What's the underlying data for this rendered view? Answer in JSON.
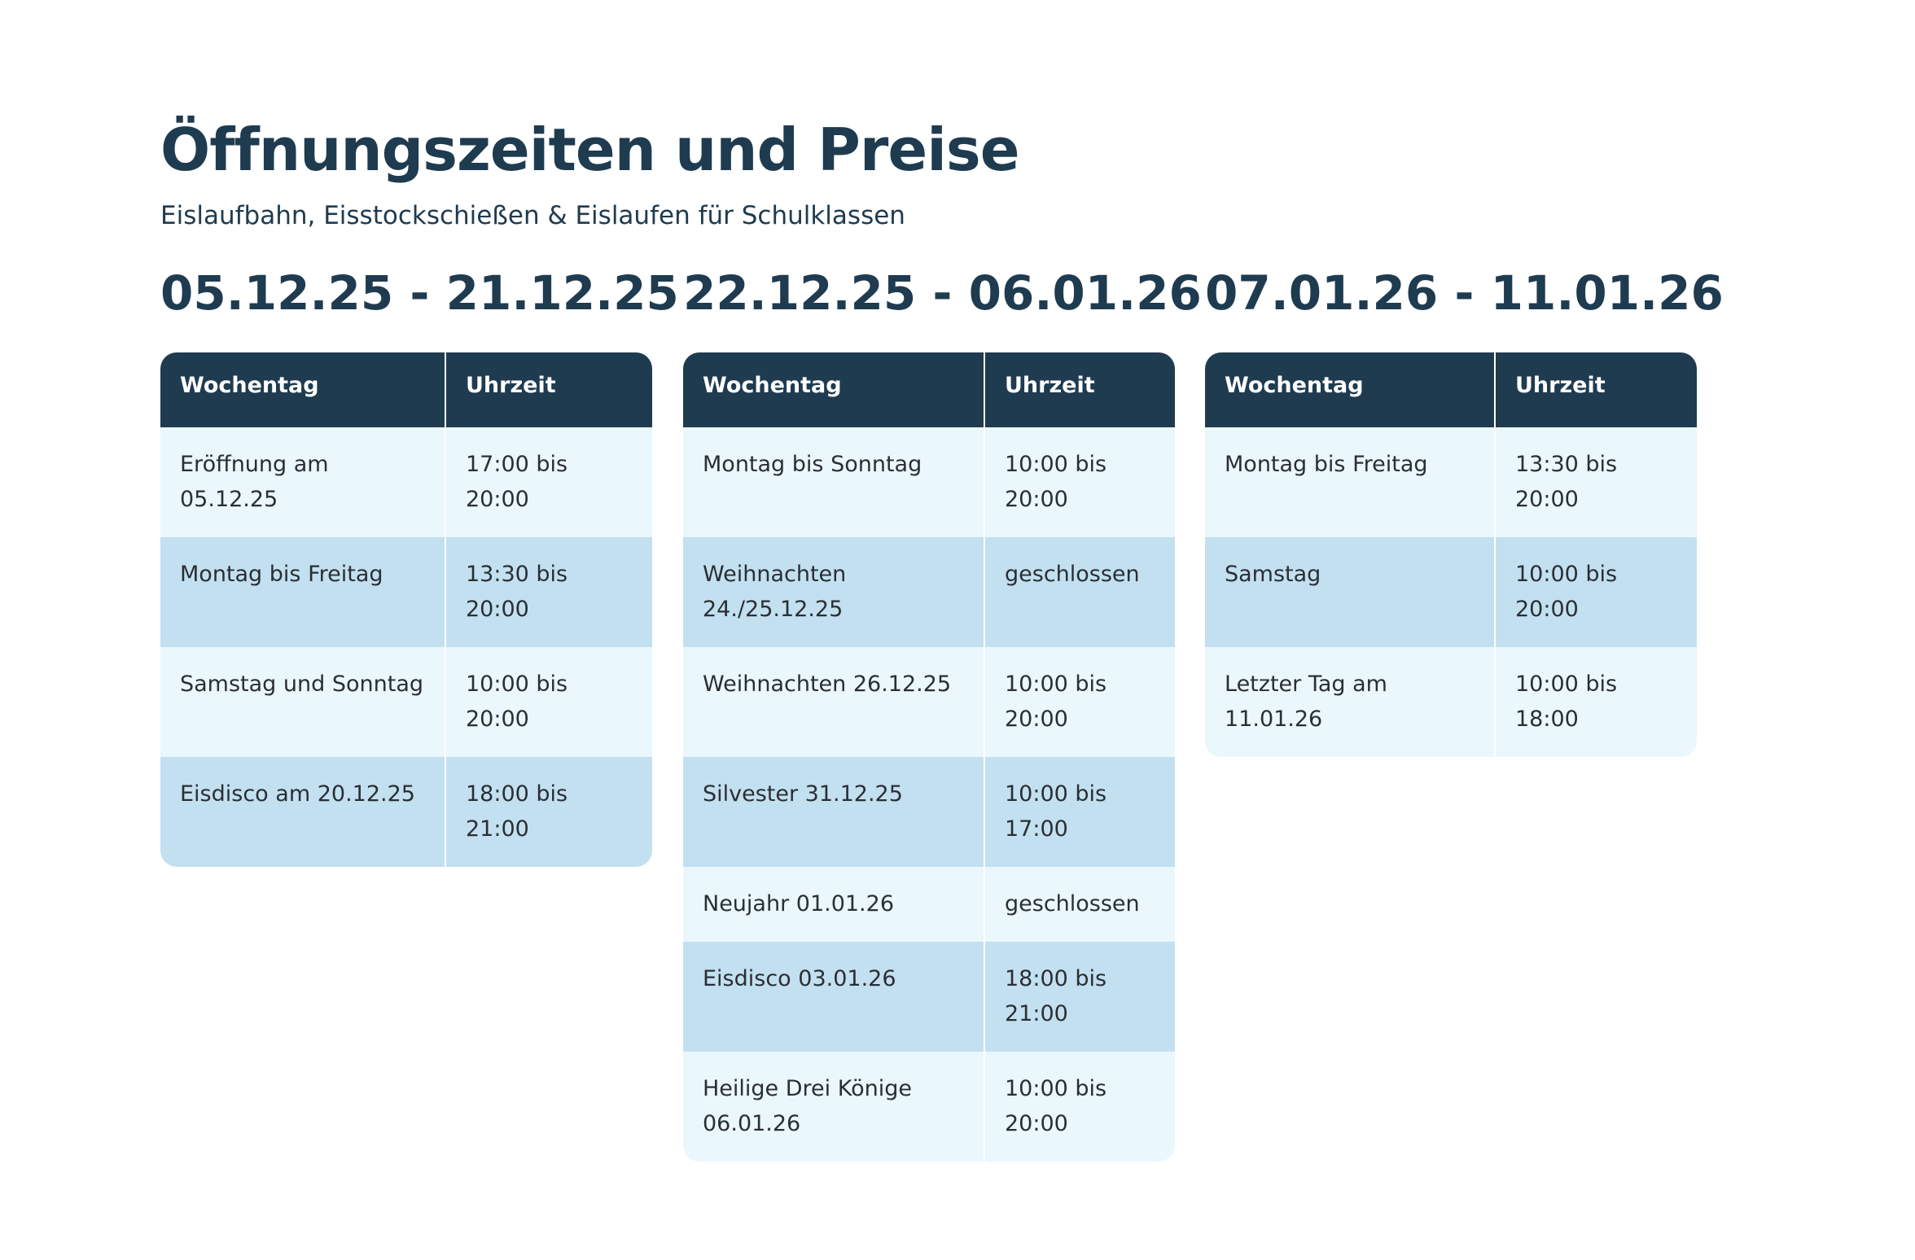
{
  "header": {
    "title": "Öffnungszeiten und Preise",
    "subtitle": "Eislaufbahn, Eisstockschießen & Eislaufen für Schulklassen"
  },
  "colors": {
    "text": "#1f3b50",
    "table_header_bg": "#1f3b50",
    "row_light": "#eaf7fd",
    "row_dark": "#c3e0f0"
  },
  "periods": [
    {
      "heading": "05.12.25 - 21.12.25",
      "columns": [
        "Wochentag",
        "Uhrzeit"
      ],
      "rows": [
        [
          "Eröffnung am 05.12.25",
          "17:00 bis 20:00"
        ],
        [
          "Montag bis Freitag",
          "13:30 bis 20:00"
        ],
        [
          "Samstag und Sonntag",
          "10:00 bis 20:00"
        ],
        [
          "Eisdisco am 20.12.25",
          "18:00 bis 21:00"
        ]
      ]
    },
    {
      "heading": "22.12.25 - 06.01.26",
      "columns": [
        "Wochentag",
        "Uhrzeit"
      ],
      "rows": [
        [
          "Montag bis Sonntag",
          "10:00 bis 20:00"
        ],
        [
          "Weihnachten 24./25.12.25",
          "geschlossen"
        ],
        [
          "Weihnachten 26.12.25",
          "10:00 bis 20:00"
        ],
        [
          "Silvester 31.12.25",
          "10:00 bis 17:00"
        ],
        [
          "Neujahr 01.01.26",
          "geschlossen"
        ],
        [
          "Eisdisco 03.01.26",
          "18:00 bis 21:00"
        ],
        [
          "Heilige Drei Könige 06.01.26",
          "10:00 bis 20:00"
        ]
      ]
    },
    {
      "heading": "07.01.26 - 11.01.26",
      "columns": [
        "Wochentag",
        "Uhrzeit"
      ],
      "rows": [
        [
          "Montag bis Freitag",
          "13:30 bis 20:00"
        ],
        [
          "Samstag",
          "10:00 bis 20:00"
        ],
        [
          "Letzter Tag am 11.01.26",
          "10:00 bis 18:00"
        ]
      ]
    }
  ]
}
